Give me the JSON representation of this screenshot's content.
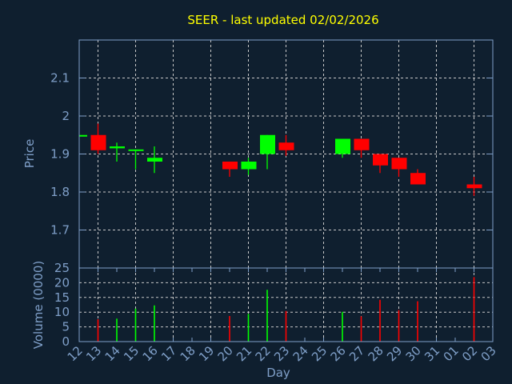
{
  "chart_data": {
    "type": "candlestick",
    "title": "SEER - last updated 02/02/2026",
    "xlabel": "Day",
    "price_panel": {
      "ylabel": "Price",
      "ylim": [
        1.6,
        2.2
      ],
      "yticks": [
        "1.7",
        "1.8",
        "1.9",
        "2",
        "2.1"
      ],
      "ytick_values": [
        1.7,
        1.8,
        1.9,
        2.0,
        2.1
      ]
    },
    "volume_panel": {
      "ylabel": "Volume (0000)",
      "ylim": [
        0,
        25
      ],
      "yticks": [
        "0",
        "5",
        "10",
        "15",
        "20",
        "25"
      ],
      "ytick_values": [
        0,
        5,
        10,
        15,
        20,
        25
      ]
    },
    "categories": [
      "12",
      "13",
      "14",
      "15",
      "16",
      "17",
      "18",
      "19",
      "20",
      "21",
      "22",
      "23",
      "24",
      "25",
      "26",
      "27",
      "28",
      "29",
      "30",
      "31",
      "01",
      "02",
      "03"
    ],
    "candles": [
      {
        "day": "12",
        "open": 1.95,
        "close": 1.95,
        "high": 1.95,
        "low": 1.95,
        "volume": null
      },
      {
        "day": "13",
        "open": 1.95,
        "close": 1.91,
        "high": 1.98,
        "low": 1.9,
        "volume": 7.6
      },
      {
        "day": "14",
        "open": 1.915,
        "close": 1.92,
        "high": 1.93,
        "low": 1.88,
        "volume": 7.8
      },
      {
        "day": "15",
        "open": 1.91,
        "close": 1.912,
        "high": 1.912,
        "low": 1.86,
        "volume": 11.2
      },
      {
        "day": "16",
        "open": 1.88,
        "close": 1.89,
        "high": 1.92,
        "low": 1.85,
        "volume": 12.3
      },
      {
        "day": "20",
        "open": 1.88,
        "close": 1.86,
        "high": 1.88,
        "low": 1.84,
        "volume": 8.7
      },
      {
        "day": "21",
        "open": 1.86,
        "close": 1.88,
        "high": 1.89,
        "low": 1.845,
        "volume": 9.4
      },
      {
        "day": "22",
        "open": 1.9,
        "close": 1.95,
        "high": 1.95,
        "low": 1.86,
        "volume": 17.6
      },
      {
        "day": "23",
        "open": 1.93,
        "close": 1.91,
        "high": 1.95,
        "low": 1.895,
        "volume": 10.4
      },
      {
        "day": "26",
        "open": 1.9,
        "close": 1.94,
        "high": 1.94,
        "low": 1.89,
        "volume": 10.1
      },
      {
        "day": "27",
        "open": 1.94,
        "close": 1.91,
        "high": 1.94,
        "low": 1.89,
        "volume": 8.6
      },
      {
        "day": "28",
        "open": 1.9,
        "close": 1.87,
        "high": 1.9,
        "low": 1.85,
        "volume": 14.2
      },
      {
        "day": "29",
        "open": 1.89,
        "close": 1.86,
        "high": 1.89,
        "low": 1.84,
        "volume": 10.7
      },
      {
        "day": "30",
        "open": 1.85,
        "close": 1.82,
        "high": 1.86,
        "low": 1.82,
        "volume": 13.7
      },
      {
        "day": "02",
        "open": 1.82,
        "close": 1.81,
        "high": 1.84,
        "low": 1.79,
        "volume": 21.9
      }
    ],
    "grid": true,
    "colors": {
      "background": "#0f1f2f",
      "up": "#00ff00",
      "down": "#ff0000",
      "axis": "#7f9fc8",
      "title": "#ffff00",
      "grid": "#c8c8c8"
    }
  }
}
